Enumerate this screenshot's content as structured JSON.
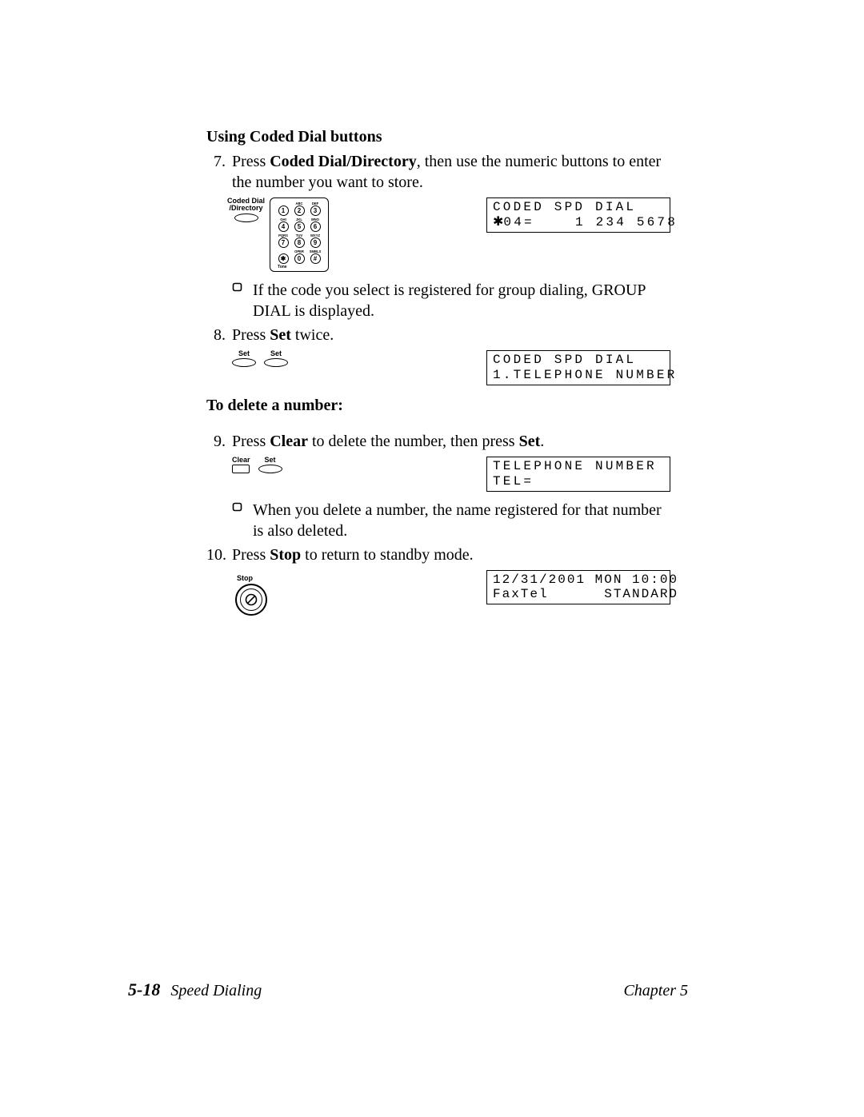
{
  "headings": {
    "using_coded": "Using Coded Dial buttons",
    "to_delete": "To delete a number:"
  },
  "steps": {
    "s7": {
      "num": "7.",
      "pre": "Press ",
      "bold": "Coded Dial/Directory",
      "post": ", then use the numeric buttons to enter the number you want to store."
    },
    "s7_bullet": "If the code you select is registered for group dialing, GROUP DIAL is displayed.",
    "s8": {
      "num": "8.",
      "pre": "Press ",
      "bold": "Set",
      "post": " twice."
    },
    "s9": {
      "num": "9.",
      "pre": "Press ",
      "bold1": "Clear",
      "mid": " to delete the number, then press ",
      "bold2": "Set",
      "post": "."
    },
    "s9_bullet": "When you delete a number, the name registered for that number is also deleted.",
    "s10": {
      "num": "10.",
      "pre": "Press ",
      "bold": "Stop",
      "post": " to return to standby mode."
    }
  },
  "buttons": {
    "coded_dial_label_l1": "Coded Dial",
    "coded_dial_label_l2": "/Directory",
    "set": "Set",
    "clear": "Clear",
    "stop": "Stop"
  },
  "keypad": {
    "labels": [
      "",
      "ABC",
      "DEF",
      "GHI",
      "JKL",
      "MNO",
      "PQRS",
      "TUV",
      "WXYZ",
      "",
      "OPER",
      "SMBLS"
    ],
    "keys": [
      "1",
      "2",
      "3",
      "4",
      "5",
      "6",
      "7",
      "8",
      "9",
      "✱",
      "0",
      "#"
    ],
    "tone": "Tone"
  },
  "lcd": {
    "d1_l1": "CODED SPD DIAL",
    "d1_l2a": "✱",
    "d1_l2b": "04=    1 234 5678",
    "d2_l1": "CODED SPD DIAL",
    "d2_l2": "1.TELEPHONE NUMBER",
    "d3_l1": "TELEPHONE NUMBER",
    "d3_l2": "TEL=",
    "d4_l1": "12/31/2001 MON 10:00",
    "d4_l2": "FaxTel      STANDARD"
  },
  "footer": {
    "page": "5-18",
    "section": "Speed Dialing",
    "chapter": "Chapter 5"
  },
  "colors": {
    "text": "#000000",
    "bg": "#ffffff",
    "border": "#000000"
  }
}
